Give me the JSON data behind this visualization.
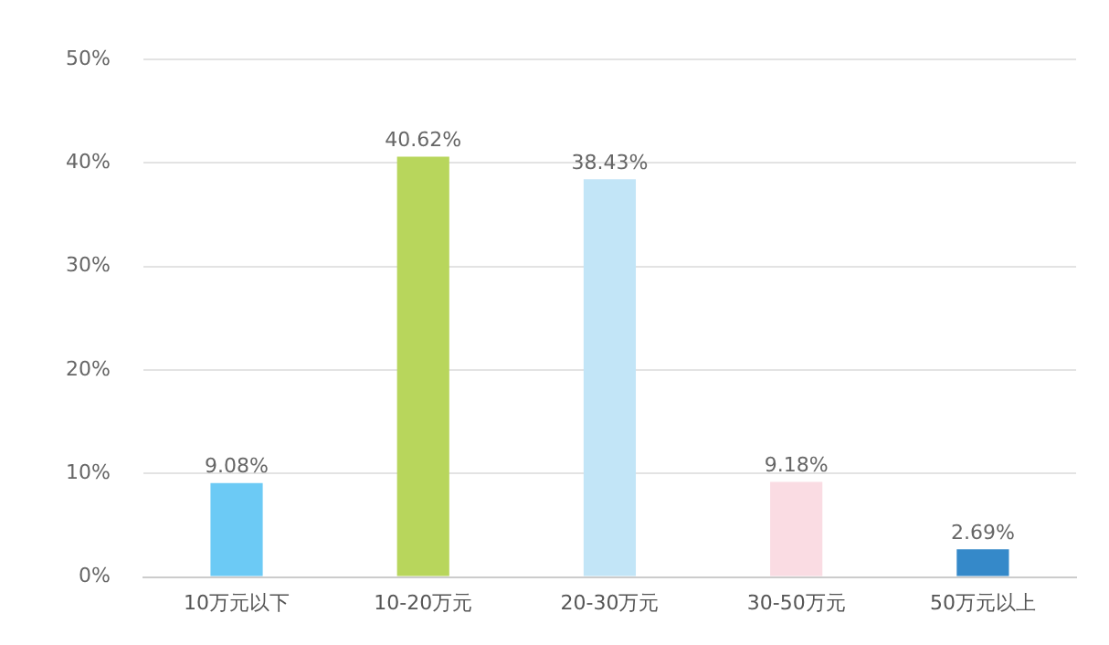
{
  "chart_data": {
    "type": "bar",
    "categories": [
      "10万元以下",
      "10-20万元",
      "20-30万元",
      "30-50万元",
      "50万元以上"
    ],
    "values": [
      9.08,
      40.62,
      38.43,
      9.18,
      2.69
    ],
    "colors": [
      "#6ccaf5",
      "#b8d65c",
      "#c2e5f7",
      "#fadce3",
      "#3589c9"
    ],
    "value_labels": [
      "9.08%",
      "40.62%",
      "38.43%",
      "9.18%",
      "2.69%"
    ],
    "ylim": [
      0,
      50
    ],
    "yticks": [
      {
        "value": 0,
        "label": "0%"
      },
      {
        "value": 10,
        "label": "10%"
      },
      {
        "value": 20,
        "label": "20%"
      },
      {
        "value": 30,
        "label": "30%"
      },
      {
        "value": 40,
        "label": "40%"
      },
      {
        "value": 50,
        "label": "50%"
      }
    ],
    "grid": "y",
    "legend": false
  }
}
